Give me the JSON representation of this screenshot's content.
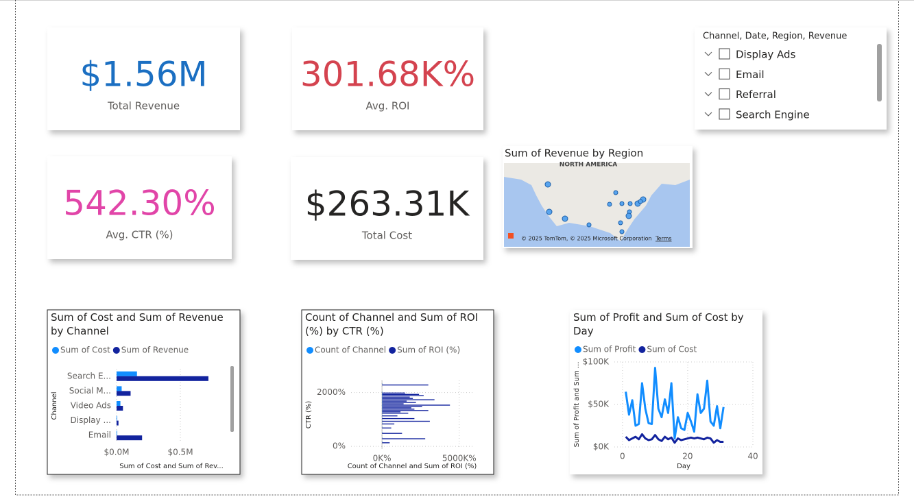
{
  "cards": [
    {
      "value": "$1.56M",
      "label": "Total Revenue",
      "color": "#1b6fc2"
    },
    {
      "value": "301.68K%",
      "label": "Avg. ROI",
      "color": "#d4434f"
    },
    {
      "value": "542.30%",
      "label": "Avg. CTR (%)",
      "color": "#e145a8"
    },
    {
      "value": "$263.31K",
      "label": "Total Cost",
      "color": "#252423"
    }
  ],
  "slicer": {
    "title": "Channel, Date, Region, Revenue",
    "items": [
      "Display Ads",
      "Email",
      "Referral",
      "Search Engine"
    ]
  },
  "map": {
    "title": "Sum of Revenue by Region",
    "region_label": "NORTH AMERICA",
    "attribution": "© 2025 TomTom, © 2025 Microsoft Corporation",
    "terms": "Terms"
  },
  "chart_data": [
    {
      "type": "bar",
      "orientation": "horizontal",
      "title": "Sum of Cost and Sum of Revenue by Channel",
      "x_label": "Sum of Cost and Sum of Rev...",
      "y_label": "Channel",
      "categories": [
        "Search E...",
        "Social M...",
        "Video Ads",
        "Display ...",
        "Email"
      ],
      "series": [
        {
          "name": "Sum of Cost",
          "color": "#118dff",
          "values": [
            0.16,
            0.04,
            0.03,
            0.005,
            0.005
          ]
        },
        {
          "name": "Sum of Revenue",
          "color": "#12239e",
          "values": [
            0.72,
            0.11,
            0.05,
            0.015,
            0.2
          ]
        }
      ],
      "xlim": [
        0,
        0.86
      ],
      "xticks": [
        {
          "value": 0,
          "label": "$0.0M"
        },
        {
          "value": 0.5,
          "label": "$0.5M"
        }
      ],
      "grid": true,
      "legend": "top"
    },
    {
      "type": "bar",
      "orientation": "horizontal",
      "title": "Count of Channel and Sum of ROI (%) by CTR (%)",
      "x_label": "Count of Channel and Sum of ROI (%)",
      "y_label": "CTR (%)",
      "y": [
        2300,
        2000,
        1950,
        1900,
        1850,
        1800,
        1750,
        1700,
        1650,
        1600,
        1550,
        1500,
        1450,
        1400,
        1350,
        1300,
        1250,
        1150,
        1050,
        950,
        850,
        700,
        500,
        300,
        150
      ],
      "series": [
        {
          "name": "Count of Channel",
          "color": "#118dff",
          "values": [
            1,
            1,
            1,
            1,
            1,
            1,
            1,
            1,
            1,
            1,
            1,
            1,
            1,
            1,
            1,
            1,
            1,
            1,
            1,
            1,
            1,
            1,
            1,
            1,
            1
          ]
        },
        {
          "name": "Sum of ROI (%)",
          "color": "#12239e",
          "values": [
            3000,
            1500,
            2400,
            2700,
            1800,
            2000,
            3400,
            1600,
            2200,
            1400,
            4400,
            2600,
            1900,
            2100,
            3000,
            1200,
            1700,
            1000,
            2100,
            3100,
            800,
            600,
            1300,
            2800,
            500
          ]
        }
      ],
      "xlim": [
        -2000,
        5900
      ],
      "xticks": [
        {
          "value": 0,
          "label": "0K%"
        },
        {
          "value": 5000,
          "label": "5000K%"
        }
      ],
      "ylim": [
        -100,
        2450
      ],
      "yticks": [
        {
          "value": 0,
          "label": "0%"
        },
        {
          "value": 2000,
          "label": "2000%"
        }
      ],
      "grid": true,
      "legend": "top"
    },
    {
      "type": "line",
      "title": "Sum of Profit and Sum of Cost by Day",
      "x_label": "Day",
      "y_label": "Sum of Profit and Sum ...",
      "x": [
        1,
        2,
        3,
        4,
        5,
        6,
        7,
        8,
        9,
        10,
        11,
        12,
        13,
        14,
        15,
        16,
        17,
        18,
        19,
        20,
        21,
        22,
        23,
        24,
        25,
        26,
        27,
        28,
        29,
        30,
        31
      ],
      "series": [
        {
          "name": "Sum of Profit",
          "color": "#118dff",
          "values": [
            65000,
            38000,
            55000,
            25000,
            27000,
            75000,
            45000,
            28000,
            27000,
            93000,
            45000,
            35000,
            56000,
            40000,
            75000,
            10000,
            35000,
            22000,
            20000,
            40000,
            30000,
            18000,
            62000,
            40000,
            45000,
            78000,
            30000,
            25000,
            48000,
            22000,
            47000
          ]
        },
        {
          "name": "Sum of Cost",
          "color": "#12239e",
          "values": [
            12000,
            8000,
            10000,
            12000,
            9000,
            15000,
            10000,
            8000,
            9000,
            14000,
            9000,
            7000,
            12000,
            9000,
            11000,
            5000,
            10000,
            8000,
            9000,
            10000,
            11000,
            10000,
            11000,
            10000,
            9000,
            11000,
            10000,
            5000,
            8000,
            6000,
            6000
          ]
        }
      ],
      "xlim": [
        -2.5,
        40
      ],
      "xticks": [
        0,
        20,
        40
      ],
      "ylim": [
        0,
        100000
      ],
      "yticks": [
        {
          "value": 0,
          "label": "$0K"
        },
        {
          "value": 50000,
          "label": "$50K"
        },
        {
          "value": 100000,
          "label": "$100K"
        }
      ],
      "grid": true,
      "legend": "top"
    }
  ]
}
